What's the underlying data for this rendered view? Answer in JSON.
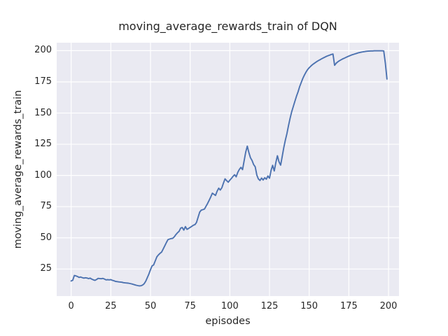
{
  "figure": {
    "title": "moving_average_rewards_train of DQN",
    "xlabel": "episodes",
    "ylabel": "moving_average_rewards_train"
  },
  "colors": {
    "figure_background": "#ffffff",
    "plot_background": "#eaeaf2",
    "grid": "#ffffff",
    "line": "#4c72b0",
    "text": "#262626"
  },
  "chart_data": {
    "type": "line",
    "title": "moving_average_rewards_train of DQN",
    "xlabel": "episodes",
    "ylabel": "moving_average_rewards_train",
    "grid": true,
    "legend": false,
    "x_ticks": [
      0,
      25,
      50,
      75,
      100,
      125,
      150,
      175,
      200
    ],
    "y_ticks": [
      25,
      50,
      75,
      100,
      125,
      150,
      175,
      200
    ],
    "xlim": [
      -9.1,
      206.6
    ],
    "ylim": [
      3.3,
      206.4
    ],
    "series": [
      {
        "name": "moving_average_rewards_train",
        "color": "#4c72b0",
        "x": [
          0,
          1,
          2,
          3,
          4,
          5,
          6,
          7,
          8,
          9,
          10,
          11,
          12,
          13,
          14,
          15,
          16,
          17,
          18,
          19,
          20,
          21,
          22,
          23,
          24,
          25,
          26,
          27,
          28,
          29,
          30,
          31,
          32,
          33,
          34,
          35,
          36,
          37,
          38,
          39,
          40,
          41,
          42,
          43,
          44,
          45,
          46,
          47,
          48,
          49,
          50,
          51,
          52,
          53,
          54,
          55,
          56,
          57,
          58,
          59,
          60,
          61,
          62,
          63,
          64,
          65,
          66,
          67,
          68,
          69,
          70,
          71,
          72,
          73,
          74,
          75,
          76,
          77,
          78,
          79,
          80,
          81,
          82,
          83,
          84,
          85,
          86,
          87,
          88,
          89,
          90,
          91,
          92,
          93,
          94,
          95,
          96,
          97,
          98,
          99,
          100,
          101,
          102,
          103,
          104,
          105,
          106,
          107,
          108,
          109,
          110,
          111,
          112,
          113,
          114,
          115,
          116,
          117,
          118,
          119,
          120,
          121,
          122,
          123,
          124,
          125,
          126,
          127,
          128,
          129,
          130,
          131,
          132,
          133,
          134,
          135,
          136,
          137,
          138,
          139,
          140,
          141,
          142,
          143,
          144,
          145,
          146,
          147,
          148,
          149,
          150,
          151,
          152,
          153,
          154,
          155,
          156,
          157,
          158,
          159,
          160,
          161,
          162,
          163,
          164,
          165,
          166,
          167,
          168,
          169,
          170,
          171,
          172,
          173,
          174,
          175,
          176,
          177,
          178,
          179,
          180,
          181,
          182,
          183,
          184,
          185,
          186,
          187,
          188,
          189,
          190,
          191,
          192,
          193,
          194,
          195,
          196,
          197,
          198,
          199
        ],
        "y": [
          15.4,
          16.0,
          19.8,
          19.5,
          19.0,
          18.3,
          18.6,
          18.1,
          17.7,
          18.0,
          17.8,
          17.3,
          17.7,
          16.9,
          16.3,
          15.9,
          16.6,
          17.5,
          17.4,
          17.2,
          17.5,
          17.0,
          16.3,
          16.5,
          16.3,
          16.5,
          15.9,
          15.6,
          15.1,
          14.9,
          14.7,
          14.6,
          14.4,
          14.1,
          13.9,
          13.8,
          13.7,
          13.4,
          13.1,
          12.8,
          12.4,
          12.0,
          11.7,
          11.5,
          11.6,
          12.1,
          13.2,
          15.2,
          18.0,
          21.0,
          24.5,
          27.5,
          28.3,
          31.5,
          34.8,
          36.3,
          37.6,
          38.6,
          41.0,
          43.6,
          46.2,
          48.5,
          49.0,
          49.4,
          49.6,
          50.8,
          52.6,
          54.0,
          55.2,
          57.8,
          58.3,
          56.2,
          59.0,
          56.8,
          57.5,
          58.4,
          59.2,
          60.1,
          60.6,
          62.3,
          66.5,
          70.6,
          72.2,
          72.6,
          73.1,
          75.3,
          77.6,
          80.2,
          82.8,
          85.8,
          84.9,
          84.0,
          87.4,
          89.8,
          88.3,
          90.2,
          94.0,
          97.3,
          95.8,
          94.6,
          96.2,
          97.6,
          99.3,
          100.6,
          98.9,
          102.5,
          104.8,
          106.5,
          104.7,
          111.5,
          118.6,
          123.5,
          118.4,
          114.2,
          112.0,
          108.8,
          106.9,
          100.3,
          97.2,
          96.0,
          97.9,
          96.4,
          98.2,
          97.0,
          99.6,
          97.8,
          104.2,
          108.1,
          103.6,
          110.4,
          115.8,
          110.9,
          108.3,
          115.0,
          122.3,
          128.4,
          133.6,
          140.1,
          146.0,
          151.0,
          155.3,
          159.5,
          163.4,
          167.0,
          171.2,
          174.6,
          177.8,
          180.5,
          182.9,
          184.8,
          186.3,
          187.6,
          188.7,
          189.7,
          190.6,
          191.4,
          192.2,
          192.9,
          193.6,
          194.3,
          194.9,
          195.5,
          196.0,
          196.5,
          197.0,
          197.3,
          188.3,
          189.9,
          191.0,
          191.9,
          192.6,
          193.3,
          193.9,
          194.5,
          195.1,
          195.7,
          196.2,
          196.7,
          197.1,
          197.5,
          197.9,
          198.3,
          198.6,
          198.9,
          199.1,
          199.3,
          199.5,
          199.6,
          199.7,
          199.8,
          199.8,
          199.9,
          199.9,
          199.9,
          199.9,
          199.9,
          199.9,
          199.8,
          190.0,
          177.3
        ]
      }
    ]
  }
}
